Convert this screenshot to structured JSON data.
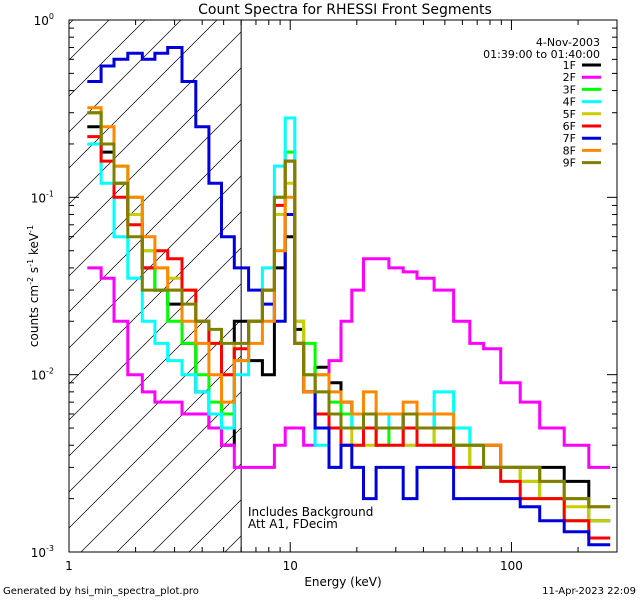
{
  "chart_data": {
    "type": "line",
    "title": "Count Spectra for RHESSI Front Segments",
    "xlabel": "Energy (keV)",
    "ylabel_parts": {
      "base": "counts cm",
      "exp1": "-2",
      "mid": " s",
      "exp2": "-1",
      "end": " keV",
      "exp3": "-1"
    },
    "xscale": "log",
    "yscale": "log",
    "xlim": [
      1,
      300
    ],
    "ylim": [
      0.001,
      1
    ],
    "grid": false,
    "legend_placement": "top-right",
    "x_tick_labels": [
      {
        "value": 1,
        "label": "1"
      },
      {
        "value": 10,
        "label": "10"
      },
      {
        "value": 100,
        "label": "100"
      }
    ],
    "y_tick_labels": [
      {
        "value": 1,
        "base": "10",
        "exp": "0"
      },
      {
        "value": 0.1,
        "base": "10",
        "exp": "-1"
      },
      {
        "value": 0.01,
        "base": "10",
        "exp": "-2"
      },
      {
        "value": 0.001,
        "base": "10",
        "exp": "-3"
      }
    ],
    "attenuator_region": {
      "xmin": 1,
      "xmax": 6
    },
    "date": "4-Nov-2003",
    "time_range": "01:39:00 to 01:40:00",
    "annotations": [
      "Includes Background",
      "Att A1, FDecim"
    ],
    "series": [
      {
        "name": "1F",
        "color": "#000000",
        "x": [
          1.3,
          1.5,
          1.7,
          2.0,
          2.3,
          2.6,
          3.0,
          3.5,
          4.0,
          4.6,
          5.2,
          6.0,
          7,
          8,
          9,
          10,
          11,
          12,
          14,
          16,
          18,
          20,
          23,
          26,
          30,
          35,
          40,
          50,
          60,
          70,
          80,
          100,
          120,
          150,
          200,
          250
        ],
        "y": [
          0.25,
          0.18,
          0.12,
          0.08,
          0.04,
          0.03,
          0.025,
          0.015,
          0.008,
          0.005,
          0.004,
          0.02,
          0.012,
          0.01,
          0.04,
          0.06,
          0.018,
          0.008,
          0.011,
          0.009,
          0.007,
          0.006,
          0.005,
          0.006,
          0.006,
          0.005,
          0.006,
          0.005,
          0.004,
          0.004,
          0.004,
          0.003,
          0.003,
          0.003,
          0.0025,
          0.0015
        ]
      },
      {
        "name": "2F",
        "color": "#ff00ff",
        "x": [
          1.3,
          1.5,
          1.7,
          2.0,
          2.3,
          2.6,
          3.0,
          3.5,
          4.0,
          4.6,
          5.2,
          6.0,
          7,
          8,
          9,
          10,
          11,
          12,
          14,
          16,
          18,
          20,
          23,
          26,
          30,
          35,
          40,
          50,
          60,
          70,
          80,
          100,
          120,
          150,
          200,
          250
        ],
        "y": [
          0.04,
          0.035,
          0.02,
          0.01,
          0.008,
          0.007,
          0.007,
          0.006,
          0.006,
          0.005,
          0.004,
          0.003,
          0.003,
          0.003,
          0.004,
          0.005,
          0.005,
          0.004,
          0.006,
          0.012,
          0.02,
          0.03,
          0.045,
          0.045,
          0.04,
          0.038,
          0.035,
          0.03,
          0.02,
          0.015,
          0.014,
          0.009,
          0.007,
          0.005,
          0.004,
          0.003
        ]
      },
      {
        "name": "3F",
        "color": "#00ff00",
        "x": [
          1.3,
          1.5,
          1.7,
          2.0,
          2.3,
          2.6,
          3.0,
          3.5,
          4.0,
          4.6,
          5.2,
          6.0,
          7,
          8,
          9,
          10,
          11,
          12,
          14,
          16,
          18,
          20,
          23,
          26,
          30,
          35,
          40,
          50,
          60,
          70,
          80,
          100,
          120,
          150,
          200,
          250
        ],
        "y": [
          0.3,
          0.2,
          0.15,
          0.1,
          0.05,
          0.03,
          0.02,
          0.015,
          0.01,
          0.007,
          0.006,
          0.012,
          0.02,
          0.03,
          0.1,
          0.18,
          0.02,
          0.015,
          0.01,
          0.007,
          0.006,
          0.005,
          0.005,
          0.004,
          0.005,
          0.005,
          0.006,
          0.004,
          0.004,
          0.003,
          0.003,
          0.003,
          0.0025,
          0.002,
          0.0015,
          0.0012
        ]
      },
      {
        "name": "4F",
        "color": "#00ffff",
        "x": [
          1.3,
          1.5,
          1.7,
          2.0,
          2.3,
          2.6,
          3.0,
          3.5,
          4.0,
          4.6,
          5.2,
          6.0,
          7,
          8,
          9,
          10,
          11,
          12,
          14,
          16,
          18,
          20,
          23,
          26,
          30,
          35,
          40,
          50,
          60,
          70,
          80,
          100,
          120,
          150,
          200,
          250
        ],
        "y": [
          0.2,
          0.12,
          0.06,
          0.035,
          0.02,
          0.015,
          0.012,
          0.01,
          0.008,
          0.006,
          0.005,
          0.01,
          0.02,
          0.04,
          0.15,
          0.28,
          0.02,
          0.01,
          0.004,
          0.003,
          0.005,
          0.006,
          0.005,
          0.006,
          0.005,
          0.004,
          0.005,
          0.008,
          0.005,
          0.004,
          0.003,
          0.003,
          0.003,
          0.002,
          0.002,
          0.0015
        ]
      },
      {
        "name": "5F",
        "color": "#cccc00",
        "x": [
          1.3,
          1.5,
          1.7,
          2.0,
          2.3,
          2.6,
          3.0,
          3.5,
          4.0,
          4.6,
          5.2,
          6.0,
          7,
          8,
          9,
          10,
          11,
          12,
          14,
          16,
          18,
          20,
          23,
          26,
          30,
          35,
          40,
          50,
          60,
          70,
          80,
          100,
          120,
          150,
          200,
          250
        ],
        "y": [
          0.3,
          0.2,
          0.12,
          0.08,
          0.05,
          0.04,
          0.035,
          0.03,
          0.02,
          0.015,
          0.01,
          0.015,
          0.02,
          0.03,
          0.08,
          0.12,
          0.02,
          0.01,
          0.008,
          0.006,
          0.005,
          0.004,
          0.004,
          0.005,
          0.005,
          0.004,
          0.005,
          0.004,
          0.004,
          0.003,
          0.003,
          0.003,
          0.0025,
          0.002,
          0.0018,
          0.0015
        ]
      },
      {
        "name": "6F",
        "color": "#ff0000",
        "x": [
          1.3,
          1.5,
          1.7,
          2.0,
          2.3,
          2.6,
          3.0,
          3.5,
          4.0,
          4.6,
          5.2,
          6.0,
          7,
          8,
          9,
          10,
          11,
          12,
          14,
          16,
          18,
          20,
          23,
          26,
          30,
          35,
          40,
          50,
          60,
          70,
          80,
          100,
          120,
          150,
          200,
          250
        ],
        "y": [
          0.22,
          0.16,
          0.1,
          0.07,
          0.04,
          0.05,
          0.045,
          0.03,
          0.02,
          0.015,
          0.01,
          0.014,
          0.02,
          0.03,
          0.09,
          0.16,
          0.015,
          0.008,
          0.006,
          0.005,
          0.004,
          0.004,
          0.005,
          0.004,
          0.004,
          0.005,
          0.004,
          0.004,
          0.003,
          0.003,
          0.003,
          0.0025,
          0.002,
          0.002,
          0.0015,
          0.0012
        ]
      },
      {
        "name": "7F",
        "color": "#0000dd",
        "x": [
          1.3,
          1.5,
          1.7,
          2.0,
          2.3,
          2.6,
          3.0,
          3.5,
          4.0,
          4.6,
          5.2,
          6.0,
          7,
          8,
          9,
          10,
          11,
          12,
          14,
          16,
          18,
          20,
          23,
          26,
          30,
          35,
          40,
          50,
          60,
          70,
          80,
          100,
          120,
          150,
          200,
          250
        ],
        "y": [
          0.45,
          0.55,
          0.6,
          0.65,
          0.6,
          0.65,
          0.7,
          0.45,
          0.25,
          0.12,
          0.06,
          0.04,
          0.03,
          0.025,
          0.02,
          0.08,
          0.015,
          0.008,
          0.005,
          0.003,
          0.004,
          0.003,
          0.002,
          0.003,
          0.003,
          0.002,
          0.003,
          0.003,
          0.002,
          0.002,
          0.002,
          0.002,
          0.0018,
          0.0015,
          0.0013,
          0.0011
        ]
      },
      {
        "name": "8F",
        "color": "#ff8800",
        "x": [
          1.3,
          1.5,
          1.7,
          2.0,
          2.3,
          2.6,
          3.0,
          3.5,
          4.0,
          4.6,
          5.2,
          6.0,
          7,
          8,
          9,
          10,
          11,
          12,
          14,
          16,
          18,
          20,
          23,
          26,
          30,
          35,
          40,
          50,
          60,
          70,
          80,
          100,
          120,
          150,
          200,
          250
        ],
        "y": [
          0.32,
          0.25,
          0.15,
          0.1,
          0.06,
          0.04,
          0.03,
          0.02,
          0.015,
          0.01,
          0.007,
          0.012,
          0.015,
          0.02,
          0.05,
          0.1,
          0.015,
          0.008,
          0.01,
          0.008,
          0.007,
          0.006,
          0.008,
          0.006,
          0.006,
          0.007,
          0.006,
          0.006,
          0.004,
          0.004,
          0.004,
          0.003,
          0.003,
          0.0025,
          0.002,
          0.0018
        ]
      },
      {
        "name": "9F",
        "color": "#808000",
        "x": [
          1.3,
          1.5,
          1.7,
          2.0,
          2.3,
          2.6,
          3.0,
          3.5,
          4.0,
          4.6,
          5.2,
          6.0,
          7,
          8,
          9,
          10,
          11,
          12,
          14,
          16,
          18,
          20,
          23,
          26,
          30,
          35,
          40,
          50,
          60,
          70,
          80,
          100,
          120,
          150,
          200,
          250
        ],
        "y": [
          0.3,
          0.2,
          0.12,
          0.06,
          0.03,
          0.03,
          0.03,
          0.025,
          0.02,
          0.018,
          0.015,
          0.015,
          0.02,
          0.03,
          0.1,
          0.16,
          0.015,
          0.01,
          0.008,
          0.006,
          0.005,
          0.005,
          0.006,
          0.005,
          0.005,
          0.006,
          0.005,
          0.005,
          0.004,
          0.004,
          0.003,
          0.003,
          0.003,
          0.0025,
          0.002,
          0.0018
        ]
      }
    ]
  },
  "footer": {
    "generated_by": "Generated by hsi_min_spectra_plot.pro",
    "timestamp": "11-Apr-2023 22:09"
  }
}
